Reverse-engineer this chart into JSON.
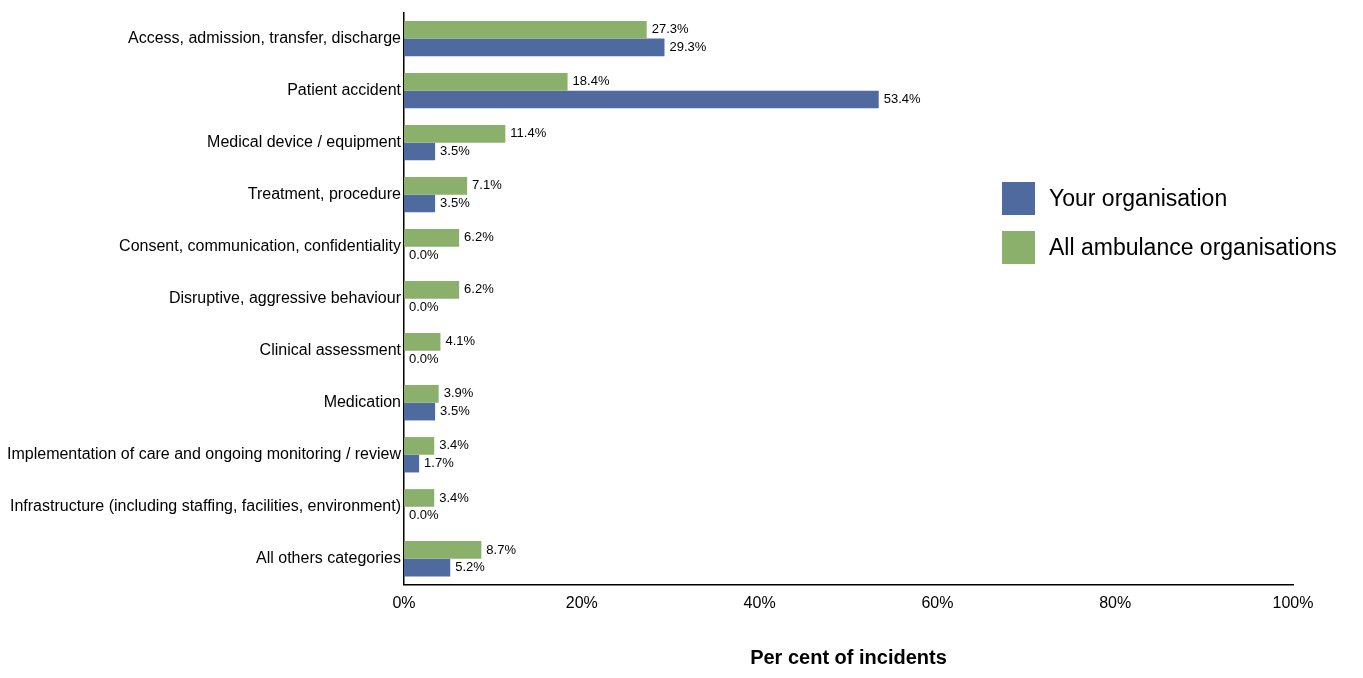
{
  "chart_data": {
    "type": "bar",
    "orientation": "horizontal",
    "xlabel": "Per cent of incidents",
    "categories": [
      "Access, admission, transfer, discharge",
      "Patient accident",
      "Medical device / equipment",
      "Treatment, procedure",
      "Consent, communication, confidentiality",
      "Disruptive, aggressive behaviour",
      "Clinical assessment",
      "Medication",
      "Implementation of care and ongoing monitoring / review",
      "Infrastructure (including staffing, facilities, environment)",
      "All others categories"
    ],
    "series": [
      {
        "name": "All ambulance organisations",
        "color": "#8bb06b",
        "values": [
          27.3,
          18.4,
          11.4,
          7.1,
          6.2,
          6.2,
          4.1,
          3.9,
          3.4,
          3.4,
          8.7
        ],
        "value_labels": [
          "27.3%",
          "18.4%",
          "11.4%",
          "7.1%",
          "6.2%",
          "6.2%",
          "4.1%",
          "3.9%",
          "3.4%",
          "3.4%",
          "8.7%"
        ]
      },
      {
        "name": "Your organisation",
        "color": "#4f6a9e",
        "values": [
          29.3,
          53.4,
          3.5,
          3.5,
          0,
          0,
          0,
          3.5,
          1.7,
          0,
          5.2
        ],
        "value_labels": [
          "29.3%",
          "53.4%",
          "3.5%",
          "3.5%",
          "0.0%",
          "0.0%",
          "0.0%",
          "3.5%",
          "1.7%",
          "0.0%",
          "5.2%"
        ]
      }
    ],
    "xlim": [
      0,
      100
    ],
    "xticks": [
      {
        "value": 0,
        "label": "0%"
      },
      {
        "value": 20,
        "label": "20%"
      },
      {
        "value": 40,
        "label": "40%"
      },
      {
        "value": 60,
        "label": "60%"
      },
      {
        "value": 80,
        "label": "80%"
      },
      {
        "value": 100,
        "label": "100%"
      }
    ],
    "grid": false,
    "legend": "right"
  }
}
